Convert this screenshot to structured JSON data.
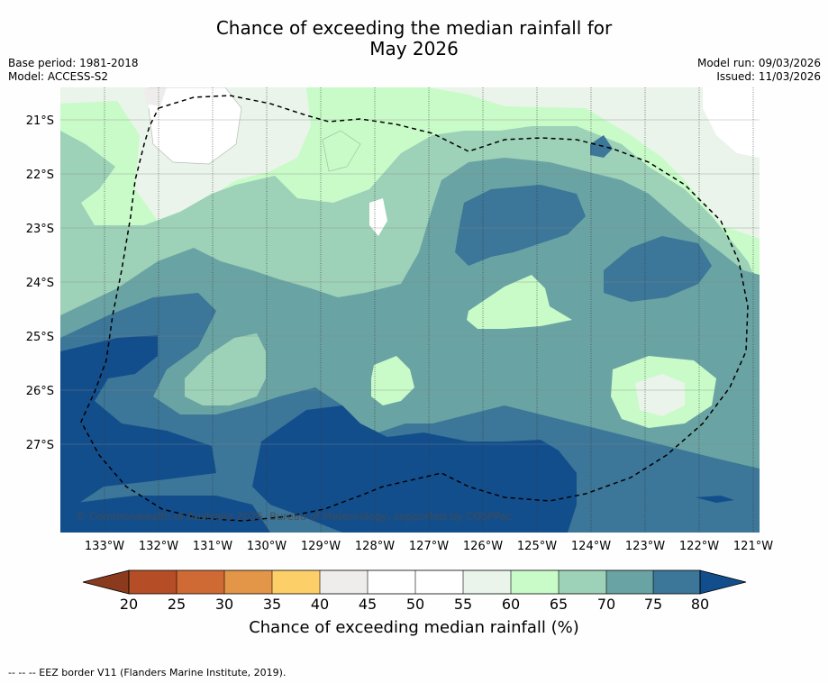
{
  "title": {
    "line1": "Chance of exceeding the median rainfall for",
    "line2": "May 2026"
  },
  "meta": {
    "base_period": "Base period: 1981-2018",
    "model": "Model: ACCESS-S2",
    "model_run": "Model run: 09/03/2026",
    "issued": "Issued: 11/03/2026"
  },
  "map": {
    "lat_labels": [
      "21°S",
      "22°S",
      "23°S",
      "24°S",
      "25°S",
      "26°S",
      "27°S"
    ],
    "lon_labels": [
      "133°W",
      "132°W",
      "131°W",
      "130°W",
      "129°W",
      "128°W",
      "127°W",
      "126°W",
      "125°W",
      "124°W",
      "123°W",
      "122°W",
      "121°W"
    ],
    "copyright": "© Commonwealth of Australia 2026, Bureau of Meteorology, supported by COSPPac"
  },
  "colorbar": {
    "ticks": [
      "20",
      "25",
      "30",
      "35",
      "40",
      "45",
      "50",
      "55",
      "60",
      "65",
      "70",
      "75",
      "80"
    ],
    "label": "Chance of exceeding median rainfall (%)",
    "colors": [
      "#8c3a1e",
      "#b54e26",
      "#d06a34",
      "#e39548",
      "#fdcf68",
      "#efedeb",
      "#ffffff",
      "#ffffff",
      "#eaf4ea",
      "#c8fbc8",
      "#9dd1b8",
      "#6aa3a3",
      "#3c7698",
      "#134e8c"
    ]
  },
  "footnote": "--  --  -- EEZ border V11 (Flanders Marine Institute, 2019)."
}
